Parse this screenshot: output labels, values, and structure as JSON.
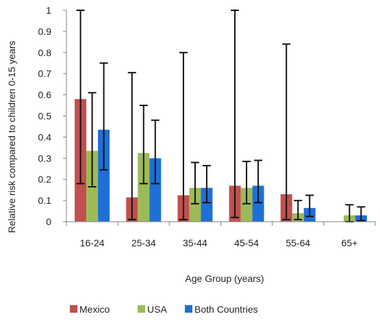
{
  "chart_data": {
    "type": "bar",
    "ylabel": "Relative risk compared to children 0-15 years",
    "xlabel": "Age Group (years)",
    "categories": [
      "16-24",
      "25-34",
      "35-44",
      "45-54",
      "55-64",
      "65+"
    ],
    "ylim": [
      0,
      1
    ],
    "yticks": [
      "0",
      "0.1",
      "0.2",
      "0.3",
      "0.4",
      "0.5",
      "0.6",
      "0.7",
      "0.8",
      "0.9",
      "1"
    ],
    "grid": false,
    "legend_position": "bottom",
    "series": [
      {
        "name": "Mexico",
        "color": "#c0504d",
        "values": [
          0.58,
          0.115,
          0.125,
          0.17,
          0.13,
          null
        ],
        "error_low": [
          0.18,
          0.01,
          0.01,
          0.02,
          0.01,
          null
        ],
        "error_high": [
          1.0,
          0.705,
          0.8,
          1.0,
          0.84,
          null
        ]
      },
      {
        "name": "USA",
        "color": "#9bbb59",
        "values": [
          0.335,
          0.325,
          0.16,
          0.16,
          0.04,
          0.03
        ],
        "error_low": [
          0.165,
          0.18,
          0.085,
          0.085,
          0.01,
          0.0
        ],
        "error_high": [
          0.61,
          0.55,
          0.28,
          0.285,
          0.1,
          0.08
        ]
      },
      {
        "name": "Both Countries",
        "color": "#1f6fd6",
        "values": [
          0.435,
          0.3,
          0.16,
          0.17,
          0.065,
          0.03
        ],
        "error_low": [
          0.245,
          0.18,
          0.09,
          0.09,
          0.025,
          0.005
        ],
        "error_high": [
          0.75,
          0.48,
          0.265,
          0.29,
          0.125,
          0.07
        ]
      }
    ]
  }
}
